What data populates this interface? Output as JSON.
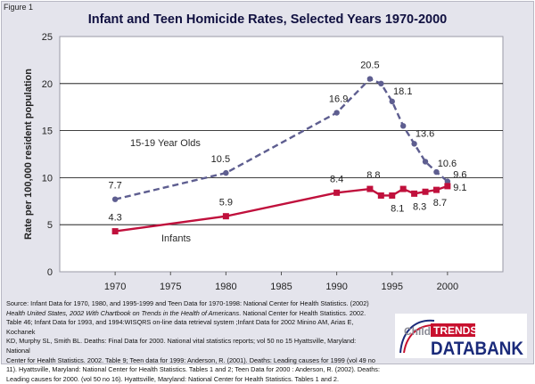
{
  "figure_label": "Figure 1",
  "source_note": {
    "line1": "Source: Infant Data for 1970, 1980, and 1995-1999 and Teen Data for 1970-1998: National Center for Health Statistics. (2002)",
    "line2_italic": "Health United States, 2002 With Chartbook on  Trends in the Health of Americans",
    "line2_rest": ". National Center for Health Statistics. 2002.",
    "line3": "Table 46; Infant Data for 1993, and 1994:WISQRS on-line data retrieval system ;Infant Data for 2002 Minino AM, Arias E, Kochanek",
    "line4": "KD, Murphy SL, Smith BL. Deaths: Final Data for 2000. National vital statistics reports; vol 50 no 15 Hyattsville, Maryland: National",
    "line5": "Center for Health Statistics. 2002. Table 9; Teen data for 1999: Anderson, R. (2001). Deaths: Leading causes for 1999 (vol 49 no",
    "line6": "11). Hyattsville, Maryland: National Center for Health Statistics. Tables 1 and 2; Teen Data for 2000 : Anderson, R. (2002). Deaths:",
    "line7": "Leading causes for 2000. (vol 50 no 16). Hyattsville, Maryland: National Center for Health Statistics. Tables 1 and 2."
  },
  "logo": {
    "word_child": "Child",
    "word_trends": "TRENDS",
    "word_databank": "DATABANK"
  },
  "colors": {
    "teen_series": "#5e5e90",
    "infant_series": "#c0103c",
    "plot_bg": "#ffffff",
    "frame_bg": "#e4e4ec",
    "logo_red": "#c8102e",
    "logo_blue": "#1a2a7a"
  },
  "chart_data": {
    "type": "line",
    "title": "Infant and Teen Homicide Rates, Selected Years 1970-2000",
    "xlabel": "",
    "ylabel": "Rate per 100,000 resident population",
    "xlim": [
      1965,
      2005
    ],
    "ylim": [
      0,
      25
    ],
    "x_ticks": [
      1970,
      1975,
      1980,
      1985,
      1990,
      1995,
      2000
    ],
    "y_ticks": [
      0,
      5,
      10,
      15,
      20,
      25
    ],
    "grid": "horizontal",
    "series": [
      {
        "name": "15-19 Year Olds",
        "style": "dashed",
        "marker": "circle",
        "x": [
          1970,
          1980,
          1990,
          1993,
          1994,
          1995,
          1996,
          1997,
          1998,
          1999,
          2000
        ],
        "values": [
          7.7,
          10.5,
          16.9,
          20.5,
          20.0,
          18.1,
          15.5,
          13.6,
          11.7,
          10.6,
          9.6
        ],
        "data_labels": [
          {
            "x": 1970,
            "text": "7.7"
          },
          {
            "x": 1980,
            "text": "10.5"
          },
          {
            "x": 1990,
            "text": "16.9"
          },
          {
            "x": 1993,
            "text": "20.5"
          },
          {
            "x": 1995,
            "text": "18.1"
          },
          {
            "x": 1997,
            "text": "13.6"
          },
          {
            "x": 1999,
            "text": "10.6"
          },
          {
            "x": 2000,
            "text": "9.6"
          }
        ]
      },
      {
        "name": "Infants",
        "style": "solid",
        "marker": "square",
        "x": [
          1970,
          1980,
          1990,
          1993,
          1994,
          1995,
          1996,
          1997,
          1998,
          1999,
          2000
        ],
        "values": [
          4.3,
          5.9,
          8.4,
          8.8,
          8.1,
          8.1,
          8.8,
          8.3,
          8.5,
          8.7,
          9.1
        ],
        "data_labels": [
          {
            "x": 1970,
            "text": "4.3"
          },
          {
            "x": 1980,
            "text": "5.9"
          },
          {
            "x": 1990,
            "text": "8.4"
          },
          {
            "x": 1993,
            "text": "8.8"
          },
          {
            "x": 1995,
            "text": "8.1"
          },
          {
            "x": 1997,
            "text": "8.3"
          },
          {
            "x": 1999,
            "text": "8.7"
          },
          {
            "x": 2000,
            "text": "9.1"
          }
        ]
      }
    ]
  }
}
